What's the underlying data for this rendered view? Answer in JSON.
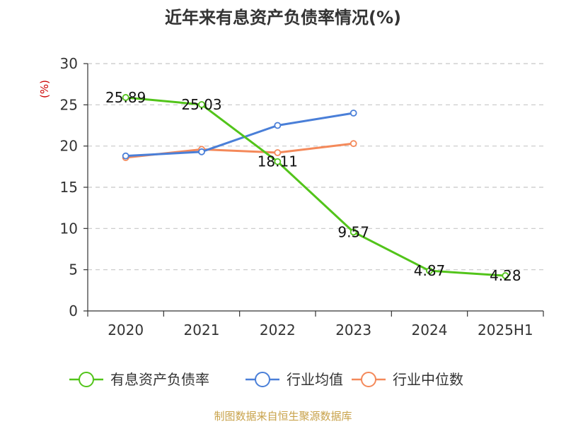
{
  "chart_data": {
    "type": "line",
    "title": "近年来有息资产负债率情况(%)",
    "unit_label": "(%)",
    "categories": [
      "2020",
      "2021",
      "2022",
      "2023",
      "2024",
      "2025H1"
    ],
    "ylim": [
      0,
      30
    ],
    "yticks": [
      0,
      5,
      10,
      15,
      20,
      25,
      30
    ],
    "grid": true,
    "legend_position": "bottom",
    "series": [
      {
        "name": "有息资产负债率",
        "color": "#52c41a",
        "values": [
          25.89,
          25.03,
          18.11,
          9.57,
          4.87,
          4.28
        ],
        "labels": [
          "25.89",
          "25.03",
          "18.11",
          "9.57",
          "4.87",
          "4.28"
        ]
      },
      {
        "name": "行业均值",
        "color": "#4a7fd8",
        "values": [
          18.8,
          19.3,
          22.5,
          24.0,
          null,
          null
        ]
      },
      {
        "name": "行业中位数",
        "color": "#f4895a",
        "values": [
          18.6,
          19.6,
          19.2,
          20.3,
          null,
          null
        ]
      }
    ],
    "source": "制图数据来自恒生聚源数据库"
  }
}
